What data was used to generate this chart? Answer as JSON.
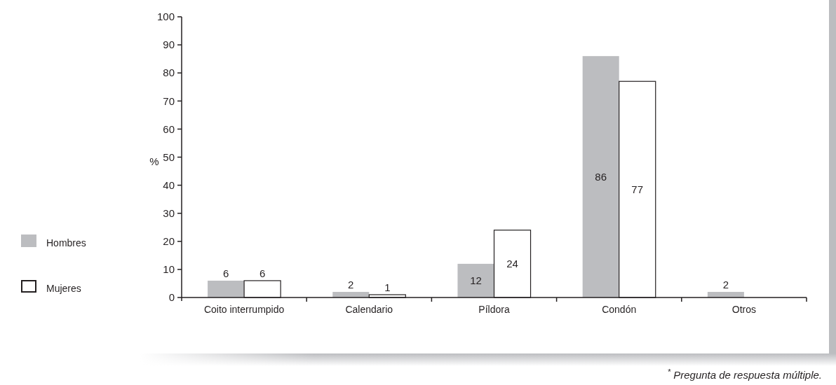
{
  "chart_data": {
    "type": "bar",
    "categories": [
      "Coito interrumpido",
      "Calendario",
      "Píldora",
      "Condón",
      "Otros"
    ],
    "series": [
      {
        "name": "Hombres",
        "color": "#bcbdc0",
        "values": [
          6,
          2,
          12,
          86,
          2
        ]
      },
      {
        "name": "Mujeres",
        "color": "#ffffff",
        "values": [
          6,
          1,
          24,
          77,
          null
        ]
      }
    ],
    "ylabel": "%",
    "ylim": [
      0,
      100
    ],
    "yticks": [
      0,
      10,
      20,
      30,
      40,
      50,
      60,
      70,
      80,
      90,
      100
    ],
    "data_labels": true,
    "legend": "left",
    "annotations": [
      "$^{*}$ Pregunta de respuesta múltiple."
    ]
  }
}
